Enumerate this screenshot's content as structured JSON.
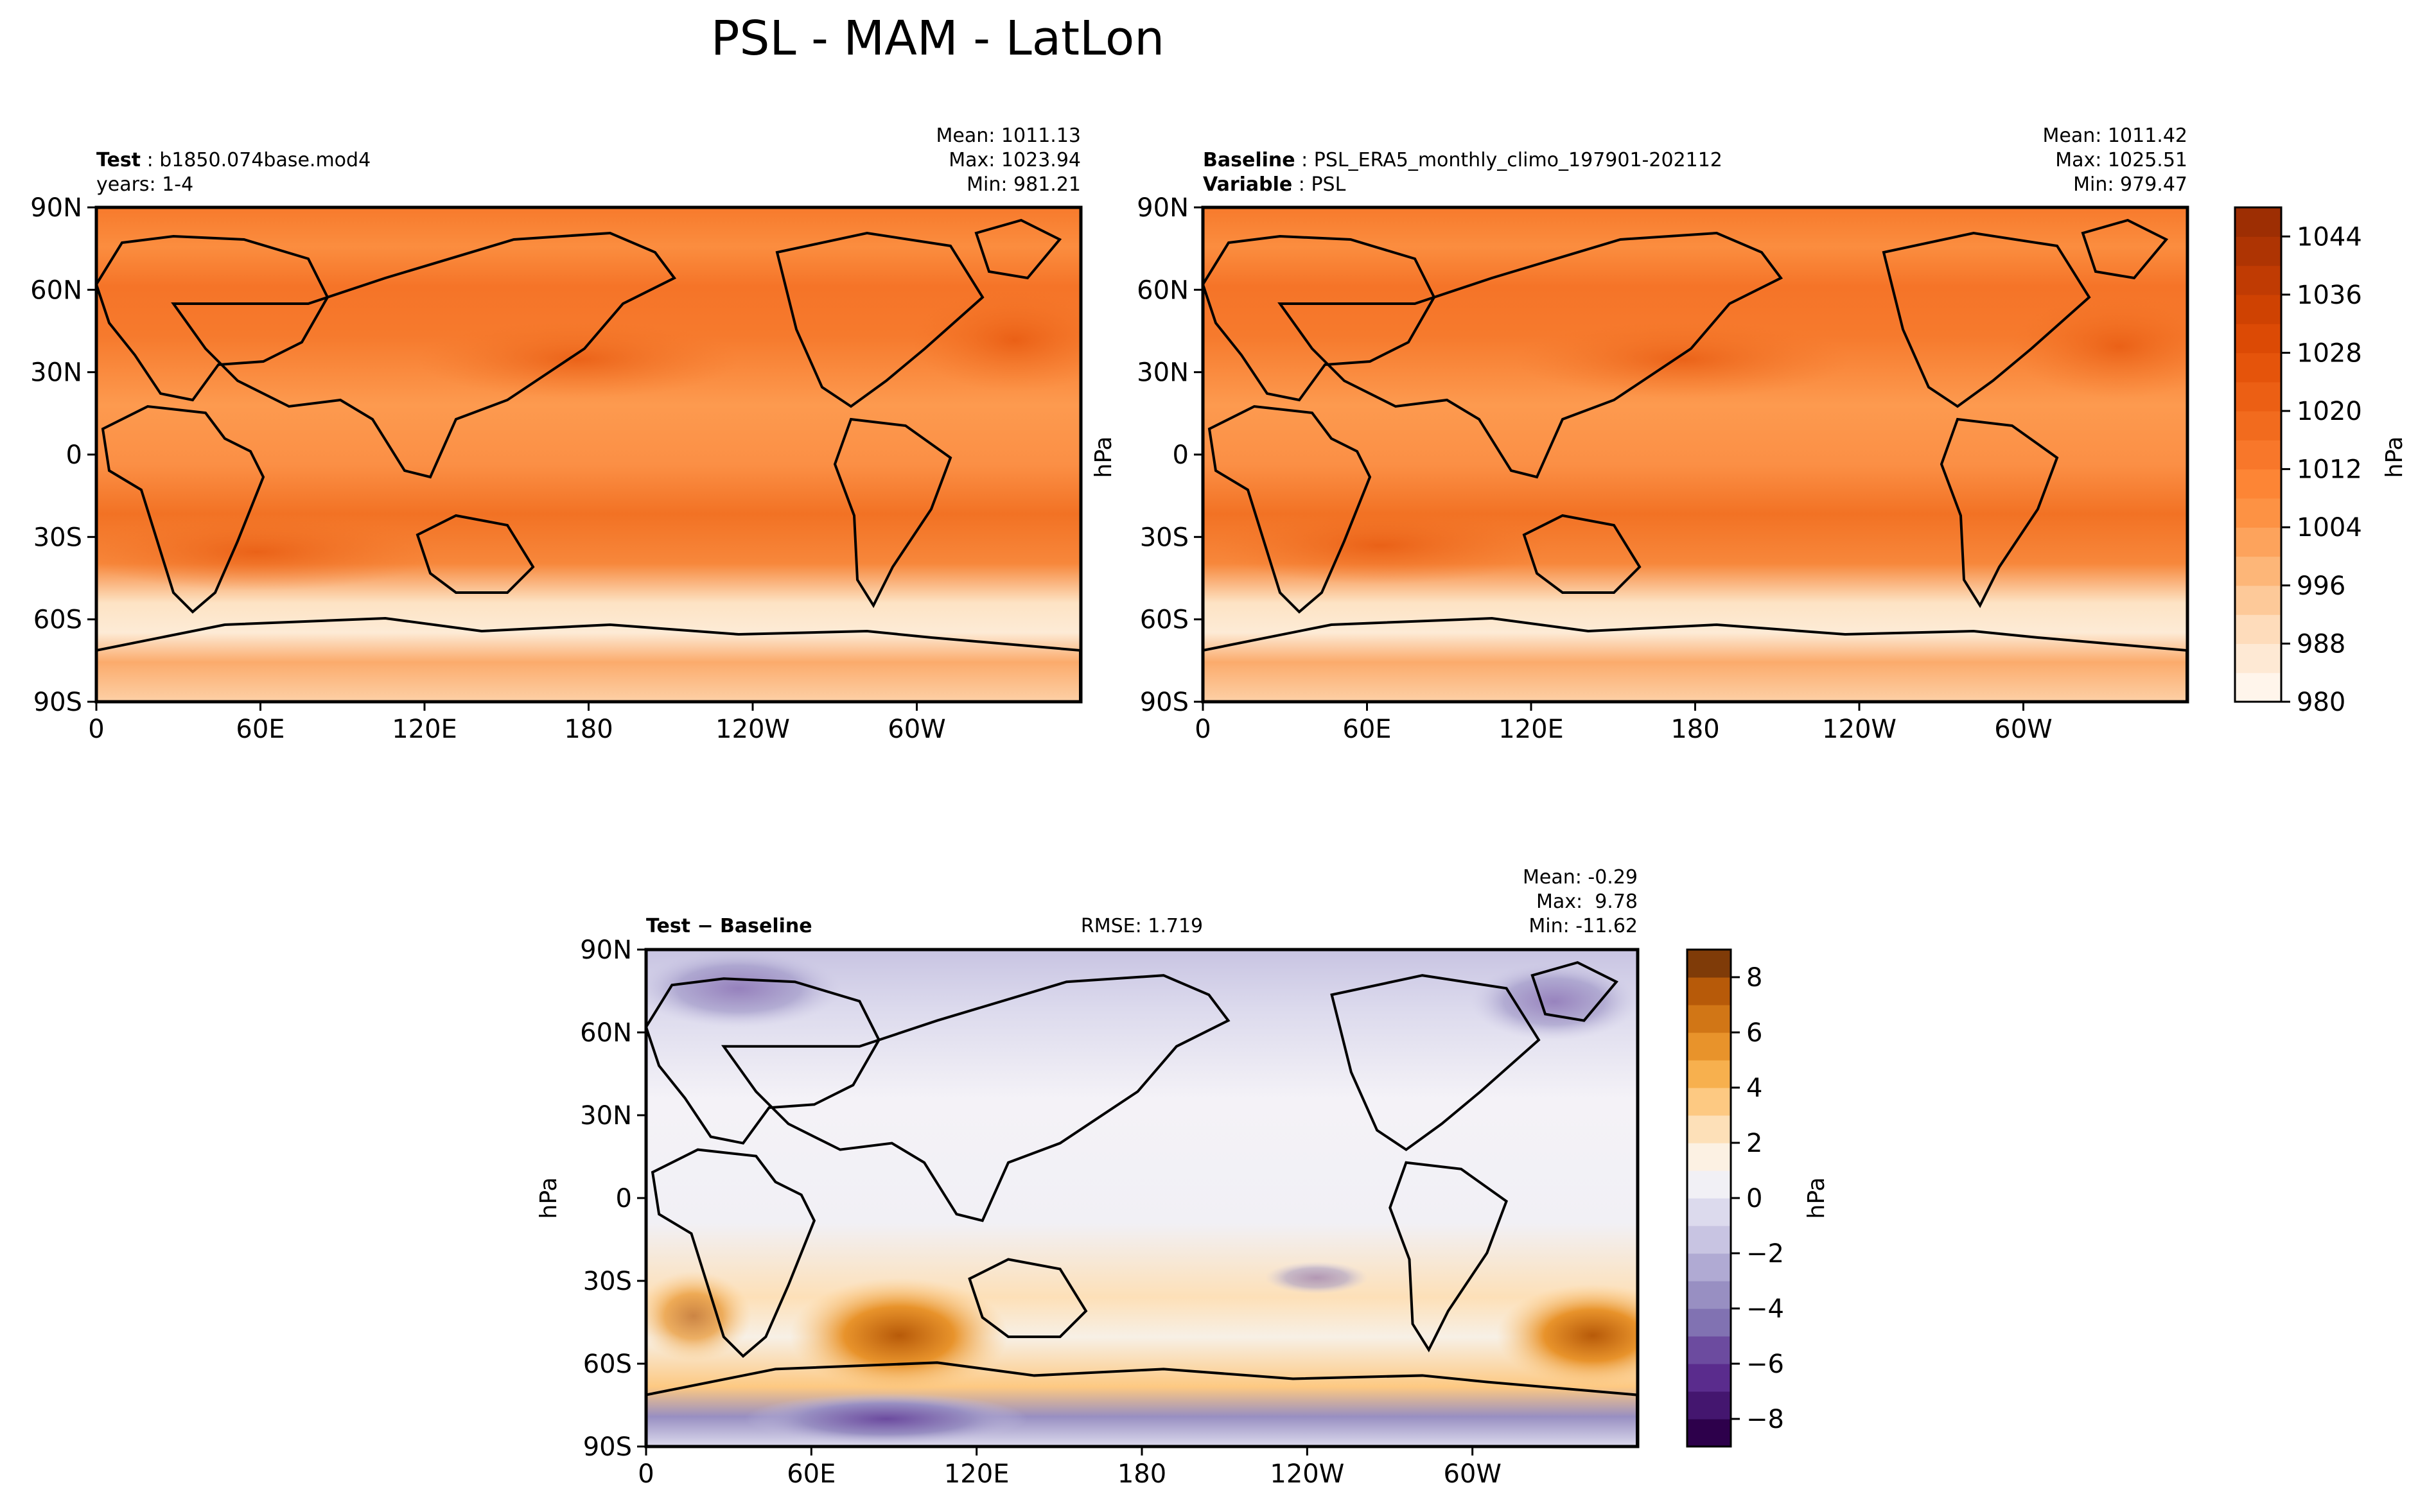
{
  "title": "PSL - MAM - LatLon",
  "chart_data": [
    {
      "type": "heatmap",
      "panel": "test",
      "header_left": [
        {
          "label": "Test",
          "value": "b1850.074base.mod4"
        },
        {
          "label": "",
          "value": "years: 1-4"
        }
      ],
      "stats": [
        "Mean: 1011.13",
        "Max: 1023.94",
        "Min: 981.21"
      ],
      "x_ticks": [
        "0",
        "60E",
        "120E",
        "180",
        "120W",
        "60W"
      ],
      "y_ticks": [
        "90N",
        "60N",
        "30N",
        "0",
        "30S",
        "60S",
        "90S"
      ],
      "field": "PSL",
      "season": "MAM",
      "mean": 1011.13,
      "max": 1023.94,
      "min": 981.21
    },
    {
      "type": "heatmap",
      "panel": "baseline",
      "header_left": [
        {
          "label": "Baseline",
          "value": "PSL_ERA5_monthly_climo_197901-202112"
        },
        {
          "label": "Variable",
          "value": "PSL"
        }
      ],
      "stats": [
        "Mean: 1011.42",
        "Max: 1025.51",
        "Min: 979.47"
      ],
      "x_ticks": [
        "0",
        "60E",
        "120E",
        "180",
        "120W",
        "60W"
      ],
      "y_ticks": [
        "90N",
        "60N",
        "30N",
        "0",
        "30S",
        "60S",
        "90S"
      ],
      "ylabel": "hPa",
      "mean": 1011.42,
      "max": 1025.51,
      "min": 979.47
    },
    {
      "type": "heatmap",
      "panel": "difference",
      "header_left": [
        {
          "label": "Test − Baseline",
          "value": ""
        }
      ],
      "header_center": "RMSE: 1.719",
      "stats": [
        "Mean: -0.29",
        "Max:  9.78",
        "Min: -11.62"
      ],
      "x_ticks": [
        "0",
        "60E",
        "120E",
        "180",
        "120W",
        "60W"
      ],
      "y_ticks": [
        "90N",
        "60N",
        "30N",
        "0",
        "30S",
        "60S",
        "90S"
      ],
      "ylabel": "hPa",
      "rmse": 1.719,
      "mean": -0.29,
      "max": 9.78,
      "min": -11.62
    }
  ],
  "colorbar_main": {
    "label": "hPa",
    "vmin": 980,
    "vmax": 1048,
    "step": 4,
    "tick_values": [
      980,
      988,
      996,
      1004,
      1012,
      1020,
      1028,
      1036,
      1044
    ],
    "tick_labels": [
      "980",
      "988",
      "996",
      "1004",
      "1012",
      "1020",
      "1028",
      "1036",
      "1044"
    ],
    "colors": [
      "#fff5eb",
      "#fee9d4",
      "#fedcbb",
      "#fdc999",
      "#fdb678",
      "#fda35c",
      "#fd9244",
      "#fd8535",
      "#f8772a",
      "#f26b1e",
      "#ec5f14",
      "#e5540b",
      "#dc4a05",
      "#cf4202",
      "#c03b03",
      "#ae3403",
      "#9d2e03"
    ]
  },
  "colorbar_diff": {
    "label": "hPa",
    "vmin": -9,
    "vmax": 9,
    "step": 1,
    "tick_values": [
      -8,
      -6,
      -4,
      -2,
      0,
      2,
      4,
      6,
      8
    ],
    "tick_labels": [
      "−8",
      "−6",
      "−4",
      "−2",
      "0",
      "2",
      "4",
      "6",
      "8"
    ],
    "colors": [
      "#2d004b",
      "#44166f",
      "#5a2c8d",
      "#6c4b9f",
      "#8172b2",
      "#988fc2",
      "#b0aad3",
      "#c8c4e2",
      "#dcdaed",
      "#f1f0f5",
      "#fcf1e3",
      "#fde0b8",
      "#fdc982",
      "#f7b04e",
      "#e8932b",
      "#d17616",
      "#b75a09",
      "#7f3b08"
    ]
  }
}
